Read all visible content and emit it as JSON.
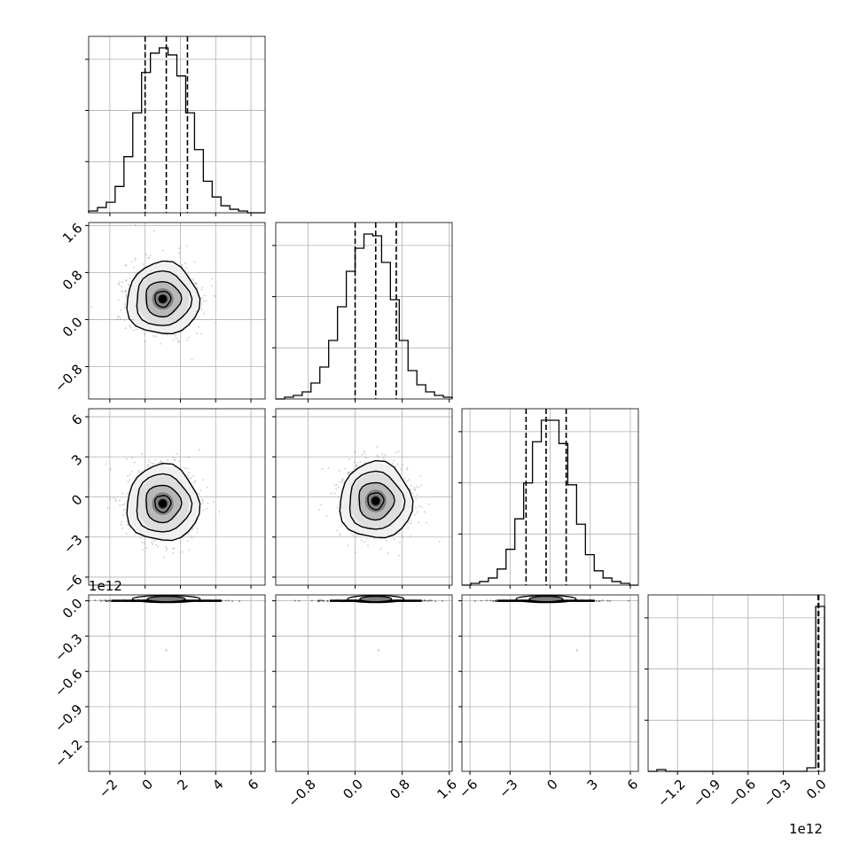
{
  "chart_data": {
    "type": "corner",
    "title": "",
    "grid": true,
    "colors": {
      "line": "#000000",
      "grid": "#b0b0b0",
      "scatter": "#808080"
    },
    "parameters": [
      {
        "label": "",
        "range": [
          -3.2,
          6.8
        ],
        "ticks": [
          -2,
          0,
          2,
          4,
          6
        ],
        "tick_labels": [
          "−2",
          "0",
          "2",
          "4",
          "6"
        ],
        "offset": ""
      },
      {
        "label": "",
        "range": [
          -1.35,
          1.65
        ],
        "ticks": [
          -0.8,
          0.0,
          0.8,
          1.6
        ],
        "tick_labels": [
          "−0.8",
          "0.0",
          "0.8",
          "1.6"
        ],
        "offset": ""
      },
      {
        "label": "",
        "range": [
          -6.6,
          6.6
        ],
        "ticks": [
          -6,
          -3,
          0,
          3,
          6
        ],
        "tick_labels": [
          "−6",
          "−3",
          "0",
          "3",
          "6"
        ],
        "offset": ""
      },
      {
        "label": "",
        "range": [
          -1.45,
          0.05
        ],
        "ticks": [
          -1.2,
          -0.9,
          -0.6,
          -0.3,
          0.0
        ],
        "tick_labels": [
          "−1.2",
          "−0.9",
          "−0.6",
          "−0.3",
          "0.0"
        ],
        "offset": "1e12"
      }
    ],
    "histograms": [
      {
        "bin_edges": [
          -3.2,
          -2.7,
          -2.2,
          -1.7,
          -1.2,
          -0.7,
          -0.2,
          0.3,
          0.8,
          1.3,
          1.8,
          2.3,
          2.8,
          3.3,
          3.8,
          4.3,
          4.8,
          5.3,
          5.8,
          6.3,
          6.8
        ],
        "counts": [
          1,
          3,
          6,
          15,
          32,
          57,
          80,
          91,
          94,
          90,
          78,
          57,
          36,
          18,
          9,
          4,
          2,
          1,
          0,
          0
        ],
        "quantiles": [
          0.0,
          1.2,
          2.4
        ]
      },
      {
        "bin_edges": [
          -1.35,
          -1.2,
          -1.05,
          -0.9,
          -0.75,
          -0.6,
          -0.45,
          -0.3,
          -0.15,
          0.0,
          0.15,
          0.3,
          0.45,
          0.6,
          0.75,
          0.9,
          1.05,
          1.2,
          1.35,
          1.5,
          1.65
        ],
        "counts": [
          0,
          1,
          2,
          4,
          9,
          18,
          33,
          52,
          72,
          85,
          93,
          92,
          77,
          56,
          33,
          16,
          8,
          4,
          2,
          1
        ],
        "quantiles": [
          0.0,
          0.35,
          0.7
        ]
      },
      {
        "bin_edges": [
          -6.6,
          -5.94,
          -5.28,
          -4.62,
          -3.96,
          -3.3,
          -2.64,
          -1.98,
          -1.32,
          -0.66,
          0.0,
          0.66,
          1.32,
          1.98,
          2.64,
          3.3,
          3.96,
          4.62,
          5.28,
          5.94,
          6.6
        ],
        "counts": [
          0,
          1,
          2,
          4,
          9,
          20,
          37,
          57,
          80,
          92,
          92,
          79,
          56,
          34,
          17,
          8,
          4,
          2,
          1,
          0
        ],
        "quantiles": [
          -1.8,
          -0.3,
          1.2
        ]
      },
      {
        "bin_edges": [
          -1.45,
          -1.375,
          -1.3,
          -1.225,
          -1.15,
          -1.075,
          -1.0,
          -0.925,
          -0.85,
          -0.775,
          -0.7,
          -0.625,
          -0.55,
          -0.475,
          -0.4,
          -0.325,
          -0.25,
          -0.175,
          -0.1,
          -0.025,
          0.05
        ],
        "counts": [
          0,
          1,
          0,
          0,
          0,
          0,
          0,
          0,
          0,
          0,
          0,
          0,
          0,
          0,
          0,
          0,
          0,
          0,
          2,
          93
        ],
        "quantiles": [
          -0.005,
          0.0,
          0.0
        ]
      }
    ],
    "correlations": [
      {
        "pair": [
          0,
          1
        ],
        "mean": [
          1.0,
          0.35
        ],
        "std": [
          1.0,
          0.3
        ]
      },
      {
        "pair": [
          0,
          2
        ],
        "mean": [
          1.0,
          -0.5
        ],
        "std": [
          1.0,
          1.4
        ]
      },
      {
        "pair": [
          1,
          2
        ],
        "mean": [
          0.35,
          -0.3
        ],
        "std": [
          0.3,
          1.4
        ]
      },
      {
        "pair": [
          0,
          3
        ],
        "mean": [
          1.2,
          0.0
        ],
        "std": [
          1.2,
          0.0
        ],
        "outliers": [
          [
            1.2,
            -0.42
          ]
        ]
      },
      {
        "pair": [
          1,
          3
        ],
        "mean": [
          0.35,
          0.0
        ],
        "std": [
          0.3,
          0.0
        ],
        "outliers": [
          [
            0.4,
            -0.42
          ]
        ]
      },
      {
        "pair": [
          2,
          3
        ],
        "mean": [
          -0.3,
          0.0
        ],
        "std": [
          1.4,
          0.0
        ],
        "outliers": [
          [
            2.0,
            -0.42
          ]
        ]
      }
    ]
  }
}
